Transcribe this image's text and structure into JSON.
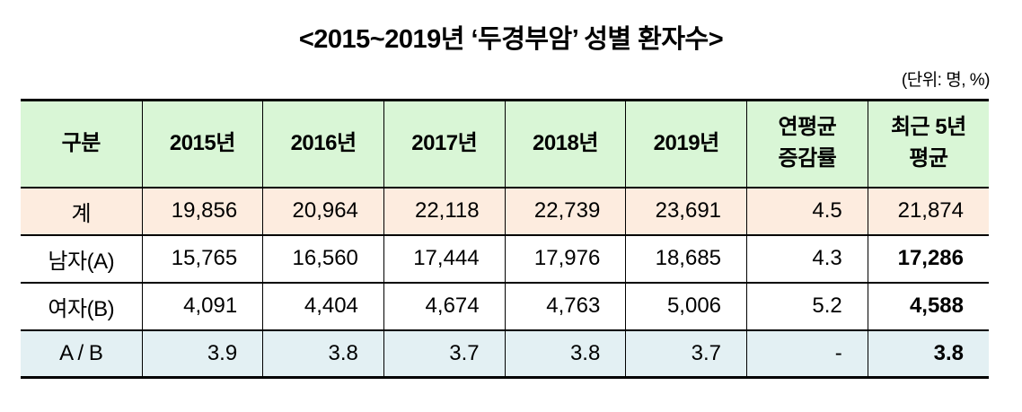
{
  "title": "<2015~2019년 ‘두경부암’ 성별 환자수>",
  "unit_note": "(단위: 명, %)",
  "colors": {
    "header_bg": "#d9f6d6",
    "total_row_bg": "#fdecdf",
    "ratio_row_bg": "#e3f0f3",
    "border": "#000000",
    "text": "#000000"
  },
  "table": {
    "columns": [
      {
        "line1": "구분"
      },
      {
        "line1": "2015년"
      },
      {
        "line1": "2016년"
      },
      {
        "line1": "2017년"
      },
      {
        "line1": "2018년"
      },
      {
        "line1": "2019년"
      },
      {
        "line1": "연평균",
        "line2": "증감률"
      },
      {
        "line1": "최근 5년",
        "line2": "평균"
      }
    ],
    "rows": [
      {
        "label": "계",
        "values": [
          "19,856",
          "20,964",
          "22,118",
          "22,739",
          "23,691",
          "4.5",
          "21,874"
        ]
      },
      {
        "label": "남자(A)",
        "values": [
          "15,765",
          "16,560",
          "17,444",
          "17,976",
          "18,685",
          "4.3",
          "17,286"
        ]
      },
      {
        "label": "여자(B)",
        "values": [
          "4,091",
          "4,404",
          "4,674",
          "4,763",
          "5,006",
          "5.2",
          "4,588"
        ]
      },
      {
        "label": "A / B",
        "values": [
          "3.9",
          "3.8",
          "3.7",
          "3.8",
          "3.7",
          "-",
          "3.8"
        ]
      }
    ]
  }
}
